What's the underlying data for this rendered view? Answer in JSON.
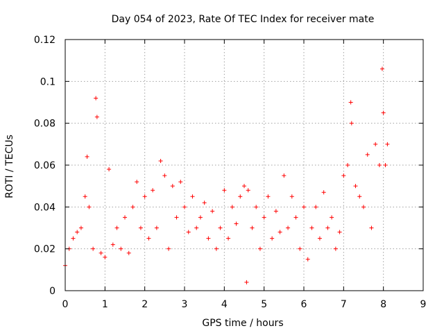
{
  "chart_data": {
    "type": "scatter",
    "title": "Day 054 of 2023, Rate Of TEC Index for receiver mate",
    "xlabel": "GPS time / hours",
    "ylabel": "ROTI / TECUs",
    "xlim": [
      0,
      9
    ],
    "ylim": [
      0,
      0.12
    ],
    "xticks": [
      "0",
      "1",
      "2",
      "3",
      "4",
      "5",
      "6",
      "7",
      "8",
      "9"
    ],
    "yticks": [
      "0",
      "0.02",
      "0.04",
      "0.06",
      "0.08",
      "0.1",
      "0.12"
    ],
    "grid": true,
    "marker": "+",
    "color": "#ff0000",
    "series": [
      {
        "name": "ROTI",
        "x": [
          0.0,
          0.1,
          0.2,
          0.3,
          0.4,
          0.5,
          0.55,
          0.6,
          0.7,
          0.77,
          0.8,
          0.9,
          1.0,
          1.1,
          1.2,
          1.3,
          1.4,
          1.5,
          1.6,
          1.7,
          1.8,
          1.9,
          2.0,
          2.1,
          2.2,
          2.3,
          2.4,
          2.5,
          2.6,
          2.7,
          2.8,
          2.9,
          3.0,
          3.1,
          3.2,
          3.3,
          3.4,
          3.5,
          3.6,
          3.7,
          3.8,
          3.9,
          4.0,
          4.1,
          4.2,
          4.3,
          4.4,
          4.5,
          4.56,
          4.6,
          4.7,
          4.8,
          4.9,
          5.0,
          5.1,
          5.2,
          5.3,
          5.4,
          5.5,
          5.6,
          5.7,
          5.8,
          5.9,
          6.0,
          6.1,
          6.2,
          6.3,
          6.4,
          6.5,
          6.6,
          6.7,
          6.8,
          6.9,
          7.0,
          7.1,
          7.18,
          7.2,
          7.3,
          7.4,
          7.5,
          7.6,
          7.7,
          7.8,
          7.9,
          7.97,
          8.0,
          8.05,
          8.1
        ],
        "y": [
          0.012,
          0.02,
          0.025,
          0.028,
          0.03,
          0.045,
          0.064,
          0.04,
          0.02,
          0.092,
          0.083,
          0.018,
          0.016,
          0.058,
          0.022,
          0.03,
          0.02,
          0.035,
          0.018,
          0.04,
          0.052,
          0.03,
          0.045,
          0.025,
          0.048,
          0.03,
          0.062,
          0.055,
          0.02,
          0.05,
          0.035,
          0.052,
          0.04,
          0.028,
          0.045,
          0.03,
          0.035,
          0.042,
          0.025,
          0.038,
          0.02,
          0.03,
          0.048,
          0.025,
          0.04,
          0.032,
          0.045,
          0.05,
          0.004,
          0.048,
          0.03,
          0.04,
          0.02,
          0.035,
          0.045,
          0.025,
          0.038,
          0.028,
          0.055,
          0.03,
          0.045,
          0.035,
          0.02,
          0.04,
          0.015,
          0.03,
          0.04,
          0.025,
          0.047,
          0.03,
          0.035,
          0.02,
          0.028,
          0.055,
          0.06,
          0.09,
          0.08,
          0.05,
          0.045,
          0.04,
          0.065,
          0.03,
          0.07,
          0.06,
          0.106,
          0.085,
          0.06,
          0.07
        ]
      }
    ]
  }
}
